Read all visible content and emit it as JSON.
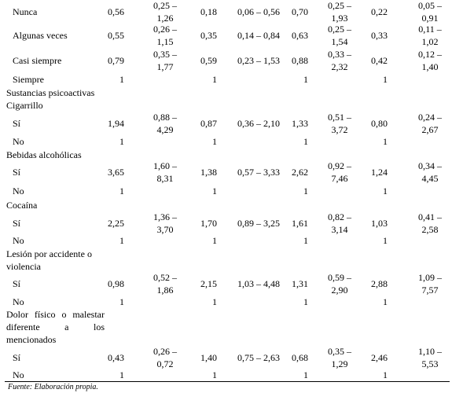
{
  "table": {
    "rows": [
      {
        "label": "Nunca",
        "cells": [
          "0,56",
          "0,25 – 1,26",
          "0,18",
          "0,06 – 0,56",
          "0,70",
          "0,25 – 1,93",
          "0,22",
          "0,05 – 0,91"
        ]
      },
      {
        "label": "Algunas veces",
        "cells": [
          "0,55",
          "0,26 – 1,15",
          "0,35",
          "0,14 – 0,84",
          "0,63",
          "0,25 – 1,54",
          "0,33",
          "0,11 – 1,02"
        ]
      },
      {
        "label": "Casi siempre",
        "cells": [
          "0,79",
          "0,35 – 1,77",
          "0,59",
          "0,23 – 1,53",
          "0,88",
          "0,33 – 2,32",
          "0,42",
          "0,12 – 1,40"
        ]
      },
      {
        "label": "Siempre",
        "cells": [
          "1",
          "1",
          "1",
          "1"
        ]
      },
      {
        "label": "Sustancias psicoactivas Cigarrillo"
      },
      {
        "label": "Sí",
        "cells": [
          "1,94",
          "0,88 – 4,29",
          "0,87",
          "0,36 – 2,10",
          "1,33",
          "0,51 – 3,72",
          "0,80",
          "0,24 – 2,67"
        ]
      },
      {
        "label": "No",
        "cells": [
          "1",
          "1",
          "1",
          "1"
        ]
      },
      {
        "label": "Bebidas alcohólicas"
      },
      {
        "label": "Sí",
        "cells": [
          "3,65",
          "1,60 – 8,31",
          "1,38",
          "0,57 – 3,33",
          "2,62",
          "0,92 – 7,46",
          "1,24",
          "0,34 – 4,45"
        ]
      },
      {
        "label": "No",
        "cells": [
          "1",
          "1",
          "1",
          "1"
        ]
      },
      {
        "label": "Cocaína"
      },
      {
        "label": "Sí",
        "cells": [
          "2,25",
          "1,36 – 3,70",
          "1,70",
          "0,89 – 3,25",
          "1,61",
          "0,82 – 3,14",
          "1,03",
          "0,41 – 2,58"
        ]
      },
      {
        "label": "No",
        "cells": [
          "1",
          "1",
          "1",
          "1"
        ]
      },
      {
        "label": "Lesión por accidente o violencia"
      },
      {
        "label": "Sí",
        "cells": [
          "0,98",
          "0,52 – 1,86",
          "2,15",
          "1,03 – 4,48",
          "1,31",
          "0,59 – 2,90",
          "2,88",
          "1,09 – 7,57"
        ]
      },
      {
        "label": "No",
        "cells": [
          "1",
          "1",
          "1",
          "1"
        ]
      },
      {
        "label": "Dolor físico o malestar diferente a los mencionados"
      },
      {
        "label": "Sí",
        "cells": [
          "0,43",
          "0,26 – 0,72",
          "1,40",
          "0,75 – 2,63",
          "0,68",
          "0,35 – 1,29",
          "2,46",
          "1,10 – 5,53"
        ]
      },
      {
        "label": "No",
        "cells": [
          "1",
          "1",
          "1",
          "1"
        ]
      }
    ],
    "footnote": "Fuente: Elaboración propia."
  }
}
